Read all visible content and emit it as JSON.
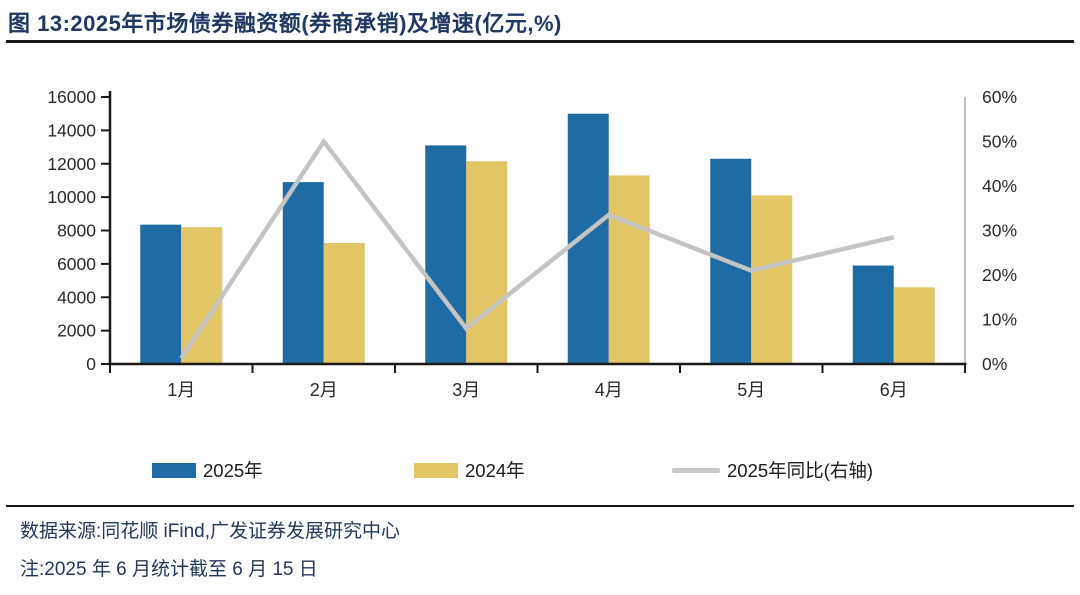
{
  "header": {
    "title": "图 13:2025年市场债券融资额(券商承销)及增速(亿元,%)"
  },
  "chart_data": {
    "type": "bar",
    "title": "2025年市场债券融资额(券商承销)及增速(亿元,%)",
    "categories": [
      "1月",
      "2月",
      "3月",
      "4月",
      "5月",
      "6月"
    ],
    "series": [
      {
        "name": "2025年",
        "type": "bar",
        "axis": "left",
        "color": "#1E6CA3",
        "values": [
          8350,
          10900,
          13100,
          15000,
          12300,
          5900
        ]
      },
      {
        "name": "2024年",
        "type": "bar",
        "axis": "left",
        "color": "#E2C666",
        "values": [
          8200,
          7250,
          12150,
          11300,
          10100,
          4600
        ]
      },
      {
        "name": "2025年同比(右轴)",
        "type": "line",
        "axis": "right",
        "color": "#C4C4C4",
        "values": [
          1.3,
          50,
          8,
          33.5,
          21,
          28.5
        ]
      }
    ],
    "left_axis": {
      "min": 0,
      "max": 16000,
      "step": 2000,
      "tick_labels": [
        "0",
        "2000",
        "4000",
        "6000",
        "8000",
        "10000",
        "12000",
        "14000",
        "16000"
      ]
    },
    "right_axis": {
      "min": 0,
      "max": 60,
      "step": 10,
      "tick_labels": [
        "0%",
        "10%",
        "20%",
        "30%",
        "40%",
        "50%",
        "60%"
      ]
    },
    "grid": false,
    "legend_position": "bottom"
  },
  "legend": {
    "items": [
      {
        "label": "2025年",
        "swatch": "rect",
        "color": "#1E6CA3"
      },
      {
        "label": "2024年",
        "swatch": "rect",
        "color": "#E2C666"
      },
      {
        "label": "2025年同比(右轴)",
        "swatch": "line",
        "color": "#C8C8C8"
      }
    ]
  },
  "footer": {
    "source": "数据来源:同花顺 iFind,广发证券发展研究中心",
    "note": "注:2025 年 6 月统计截至 6 月 15 日"
  },
  "colors": {
    "title_navy": "#1F3864",
    "bar_2025": "#1E6CA3",
    "bar_2024": "#E2C666",
    "growth_line": "#C4C4C4",
    "axis_black": "#1a1a1a",
    "right_axis_gray": "#C0C0C0"
  }
}
